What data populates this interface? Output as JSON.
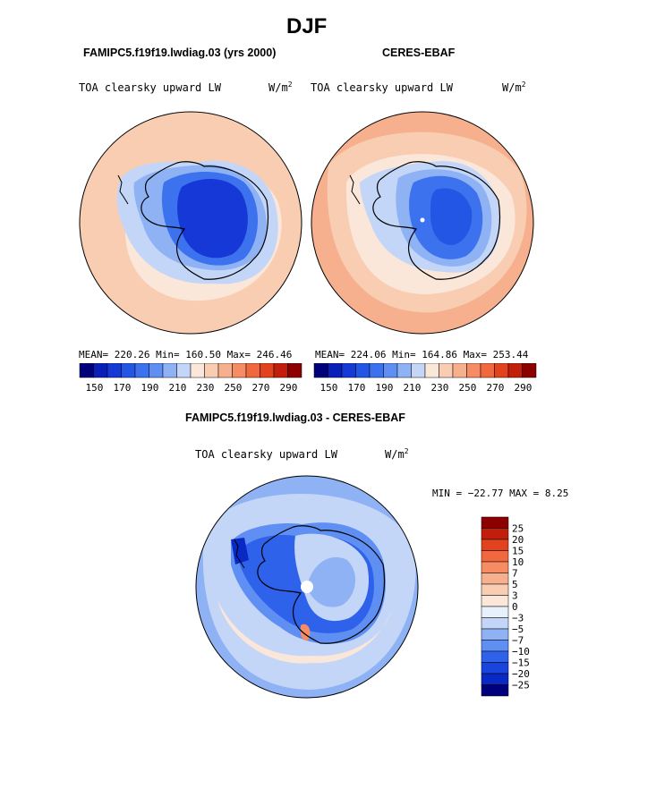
{
  "title": "DJF",
  "panels": [
    {
      "header": "FAMIPC5.f19f19.lwdiag.03 (yrs 2000)",
      "variable": "TOA clearsky upward LW",
      "units_base": "W/m",
      "units_exp": "2",
      "stats": "MEAN= 220.26   Min= 160.50   Max= 246.46"
    },
    {
      "header": "CERES-EBAF",
      "variable": "TOA clearsky upward LW",
      "units_base": "W/m",
      "units_exp": "2",
      "stats": "MEAN= 224.06   Min= 164.86   Max= 253.44"
    }
  ],
  "diff": {
    "header": "FAMIPC5.f19f19.lwdiag.03 - CERES-EBAF",
    "variable": "TOA clearsky upward LW",
    "units_base": "W/m",
    "units_exp": "2",
    "stats": "MIN = −22.77 MAX =    8.25"
  },
  "chart_data": [
    {
      "type": "heatmap",
      "title": "FAMIPC5.f19f19.lwdiag.03 (yrs 2000)",
      "projection": "south polar stereographic",
      "colorbar": {
        "orientation": "horizontal",
        "ticks": [
          "150",
          "170",
          "190",
          "210",
          "230",
          "250",
          "270",
          "290"
        ],
        "colors": [
          "#00007a",
          "#0a1fb8",
          "#1638d6",
          "#2456e6",
          "#3c72ee",
          "#5f8ff2",
          "#8fb2f5",
          "#c3d6f8",
          "#fbe7d9",
          "#f8cdb2",
          "#f6b08d",
          "#f58c64",
          "#f2683e",
          "#e3421e",
          "#c21e0c",
          "#8c0000"
        ]
      },
      "mean": 220.26,
      "min": 160.5,
      "max": 246.46
    },
    {
      "type": "heatmap",
      "title": "CERES-EBAF",
      "projection": "south polar stereographic",
      "colorbar": {
        "orientation": "horizontal",
        "ticks": [
          "150",
          "170",
          "190",
          "210",
          "230",
          "250",
          "270",
          "290"
        ],
        "colors": [
          "#00007a",
          "#0a1fb8",
          "#1638d6",
          "#2456e6",
          "#3c72ee",
          "#5f8ff2",
          "#8fb2f5",
          "#c3d6f8",
          "#fbe7d9",
          "#f8cdb2",
          "#f6b08d",
          "#f58c64",
          "#f2683e",
          "#e3421e",
          "#c21e0c",
          "#8c0000"
        ]
      },
      "mean": 224.06,
      "min": 164.86,
      "max": 253.44
    },
    {
      "type": "heatmap",
      "title": "FAMIPC5.f19f19.lwdiag.03 - CERES-EBAF",
      "projection": "south polar stereographic",
      "colorbar": {
        "orientation": "vertical",
        "ticks": [
          "25",
          "20",
          "15",
          "10",
          "7",
          "5",
          "3",
          "0",
          "−3",
          "−5",
          "−7",
          "−10",
          "−15",
          "−20",
          "−25"
        ],
        "colors": [
          "#8c0000",
          "#c21e0c",
          "#e3421e",
          "#f2683e",
          "#f58c64",
          "#f6b08d",
          "#f8cdb2",
          "#fbe7d9",
          "#e8f0fb",
          "#c3d6f8",
          "#8fb2f5",
          "#5f8ff2",
          "#2e62ea",
          "#1a44de",
          "#0a28c4",
          "#00007a"
        ]
      },
      "min": -22.77,
      "max": 8.25
    }
  ]
}
